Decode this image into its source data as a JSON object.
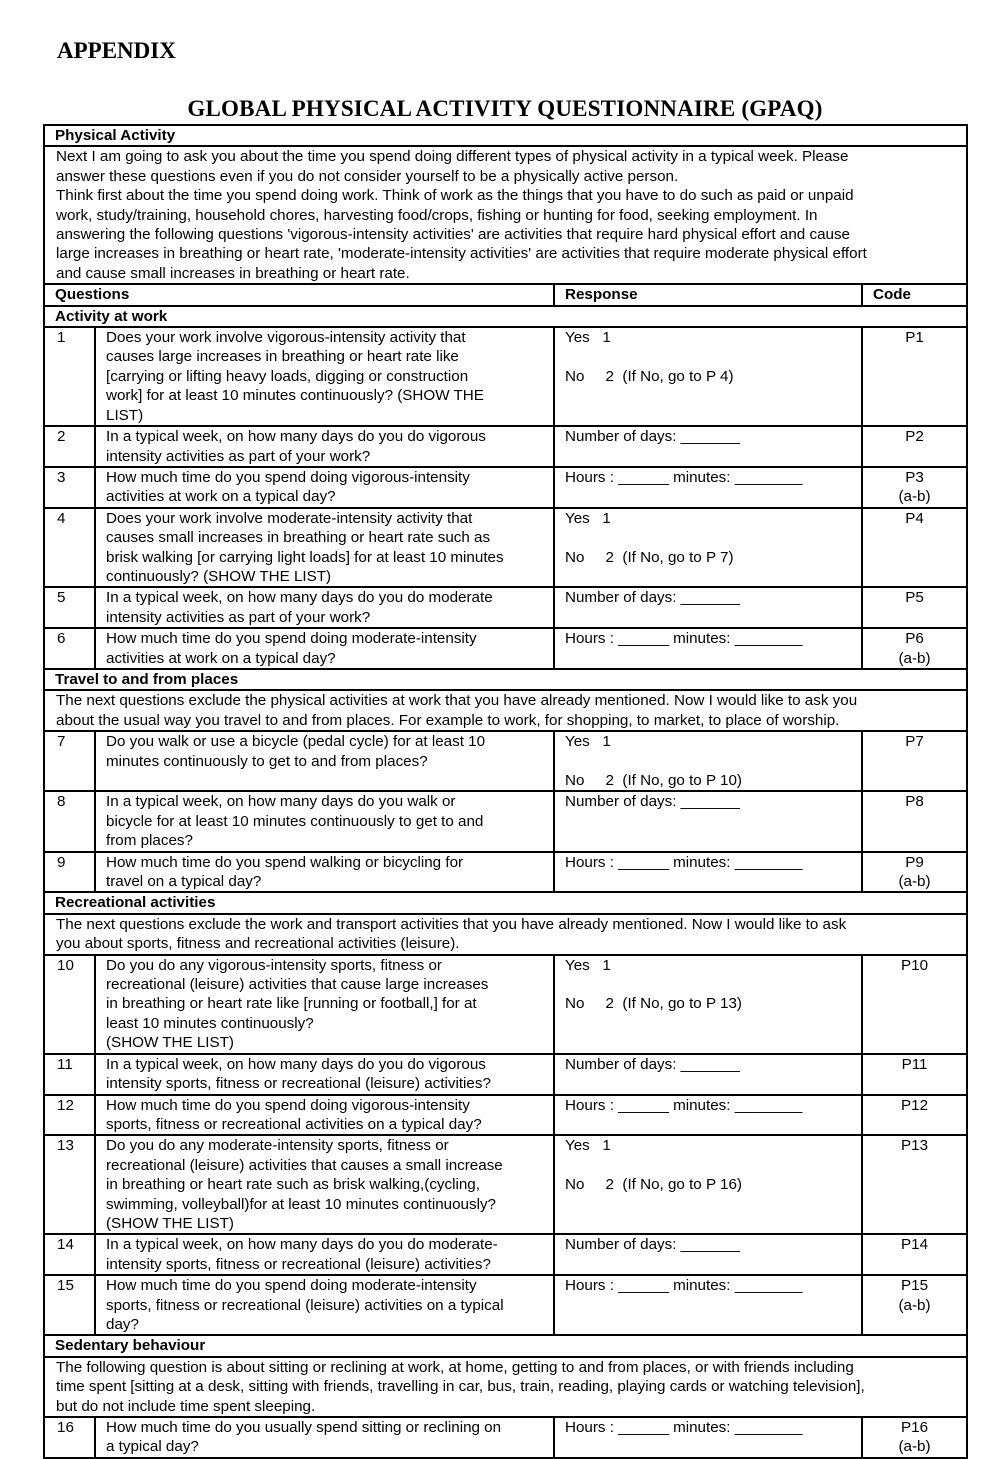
{
  "appendix": "APPENDIX",
  "title": "GLOBAL PHYSICAL ACTIVITY QUESTIONNAIRE (GPAQ)",
  "section_main": "Physical Activity",
  "intro": "Next I am going to ask you about the time you spend doing different types of physical activity in a typical week. Please\nanswer these questions even if you do not consider yourself to be a physically active person.\nThink first about the time you spend doing work. Think of work as the things that you have to do such as paid or unpaid\nwork, study/training, household chores, harvesting food/crops, fishing or hunting for food, seeking employment. In\nanswering the following questions 'vigorous-intensity activities' are activities that require hard physical effort and cause\nlarge increases in breathing or heart rate, 'moderate-intensity activities' are activities that require moderate physical effort\nand cause small increases in breathing or heart rate.",
  "headers": {
    "questions": "Questions",
    "response": "Response",
    "code": "Code"
  },
  "sections": [
    {
      "title": "Activity at work",
      "intro": ""
    },
    {
      "title": "Travel to and from places",
      "intro": "The next questions exclude the physical activities at work that you have already mentioned. Now I would like to ask you\nabout the usual way you travel to and from places. For example to work, for shopping, to market, to place of worship."
    },
    {
      "title": "Recreational activities",
      "intro": "The next questions exclude the work and transport activities that you have already mentioned. Now I would like to ask\nyou about sports, fitness and recreational activities (leisure)."
    },
    {
      "title": "Sedentary behaviour",
      "intro": "The following question is about sitting or reclining at work, at home, getting to and from places, or with friends including\ntime spent [sitting at a desk, sitting with friends, travelling in car, bus, train, reading, playing cards or watching television],\nbut do not include time spent sleeping."
    }
  ],
  "questions": [
    {
      "num": "1",
      "text": "Does your work involve vigorous-intensity activity that\ncauses large increases in breathing or heart rate like\n[carrying or lifting heavy loads, digging or construction\nwork] for at least 10 minutes continuously? (SHOW THE\nLIST)",
      "response": "Yes   1\n\nNo     2  (If No, go to P 4)",
      "code": "P1"
    },
    {
      "num": "2",
      "text": "In a typical week, on how many days do you do vigorous\nintensity activities as part of your work?",
      "response": "Number of days: _______",
      "code": "P2"
    },
    {
      "num": "3",
      "text": "How much time do you spend doing vigorous-intensity\nactivities at work on a typical day?",
      "response": "Hours : ______ minutes: ________",
      "code": "P3\n(a-b)"
    },
    {
      "num": "4",
      "text": "Does your work involve moderate-intensity activity that\ncauses small increases in breathing or heart rate such as\nbrisk walking [or carrying light loads] for at least 10 minutes\ncontinuously? (SHOW THE LIST)",
      "response": "Yes   1\n\nNo     2  (If No, go to P 7)",
      "code": "P4"
    },
    {
      "num": "5",
      "text": "In a typical week, on how many days do you do moderate\nintensity activities as part of your work?",
      "response": "Number of days: _______",
      "code": "P5"
    },
    {
      "num": "6",
      "text": "How much time do you spend doing moderate-intensity\nactivities at work on a typical day?",
      "response": "Hours : ______ minutes: ________",
      "code": "P6\n(a-b)"
    },
    {
      "num": "7",
      "text": "Do you walk or use a bicycle (pedal cycle) for at least 10\nminutes continuously to get to and from places?",
      "response": "Yes   1\n\nNo     2  (If No, go to P 10)",
      "code": "P7"
    },
    {
      "num": "8",
      "text": "In a typical week, on how many days do you walk or\nbicycle for at least 10 minutes continuously to get to and\nfrom places?",
      "response": "Number of days: _______",
      "code": "P8"
    },
    {
      "num": "9",
      "text": "How much time do you spend walking or bicycling for\ntravel on a typical day?",
      "response": "Hours : ______ minutes: ________",
      "code": "P9\n(a-b)"
    },
    {
      "num": "10",
      "text": "Do you do any vigorous-intensity sports, fitness or\nrecreational (leisure) activities that cause large increases\nin breathing or heart rate like [running or football,] for at\nleast 10 minutes continuously?\n(SHOW THE LIST)",
      "response": "Yes   1\n\nNo     2  (If No, go to P 13)",
      "code": "P10"
    },
    {
      "num": "11",
      "text": "In a typical week, on how many days do you do vigorous\nintensity sports, fitness or recreational (leisure) activities?",
      "response": "Number of days: _______",
      "code": "P11"
    },
    {
      "num": "12",
      "text": "How much time do you spend doing vigorous-intensity\nsports, fitness or recreational activities on a typical day?",
      "response": "Hours : ______ minutes: ________",
      "code": "P12"
    },
    {
      "num": "13",
      "text": "Do you do any moderate-intensity sports, fitness or\nrecreational (leisure) activities that causes a small increase\nin breathing or heart rate such as brisk walking,(cycling,\nswimming, volleyball)for at least 10 minutes continuously?\n(SHOW THE LIST)",
      "response": "Yes   1\n\nNo     2  (If No, go to P 16)",
      "code": "P13"
    },
    {
      "num": "14",
      "text": "In a typical week, on how many days do you do moderate-\nintensity sports, fitness or recreational (leisure) activities?",
      "response": "Number of days: _______",
      "code": "P14"
    },
    {
      "num": "15",
      "text": "How much time do you spend doing moderate-intensity\nsports, fitness or recreational (leisure) activities on a typical\nday?",
      "response": "Hours : ______ minutes: ________",
      "code": "P15\n(a-b)"
    },
    {
      "num": "16",
      "text": "How much time do you usually spend sitting or reclining on\na typical day?",
      "response": "Hours : ______ minutes: ________",
      "code": "P16\n(a-b)"
    }
  ]
}
